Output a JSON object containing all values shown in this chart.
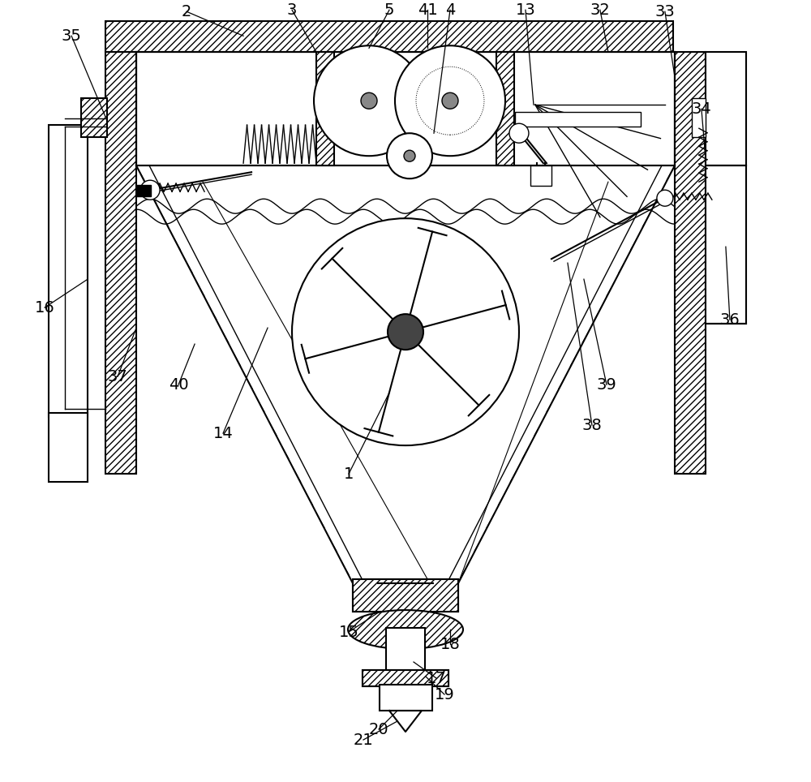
{
  "bg_color": "#ffffff",
  "lc": "#000000",
  "fig_w": 10.0,
  "fig_h": 9.64,
  "dpi": 100,
  "xlim": [
    0,
    1000
  ],
  "ylim": [
    0,
    964
  ]
}
